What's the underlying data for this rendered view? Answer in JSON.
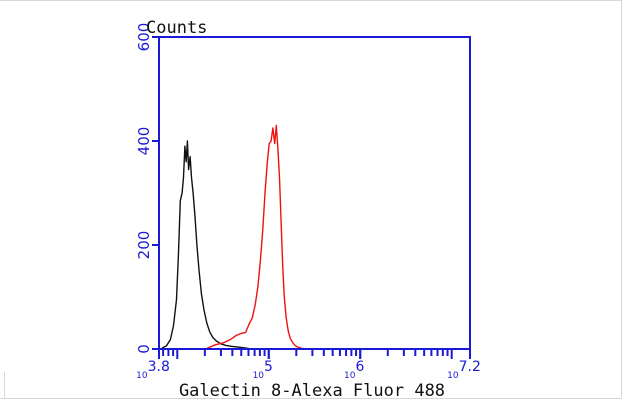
{
  "chart_data": {
    "type": "line",
    "title": "",
    "xlabel": "Galectin 8-Alexa Fluor 488",
    "ylabel": "Counts",
    "x_scale": "log",
    "xlim": [
      6310,
      15850000
    ],
    "ylim": [
      0,
      600
    ],
    "x_major_ticks": [
      {
        "value": 6310,
        "base": "10",
        "exp": "3.8"
      },
      {
        "value": 100000,
        "base": "10",
        "exp": "5"
      },
      {
        "value": 1000000,
        "base": "10",
        "exp": "6"
      },
      {
        "value": 15850000,
        "base": "10",
        "exp": "7.2"
      }
    ],
    "y_ticks": [
      0,
      200,
      400,
      600
    ],
    "colors": {
      "axis": "#1a1ad6",
      "black_series": "#111111",
      "red_series": "#ee1111",
      "frame": "#d7d7d7"
    },
    "series": [
      {
        "color": "#111111",
        "x": [
          6800,
          7600,
          8400,
          9100,
          9800,
          10300,
          10800,
          11300,
          11700,
          12100,
          12500,
          12900,
          13300,
          13800,
          14300,
          14900,
          15600,
          16400,
          17300,
          18400,
          19600,
          21000,
          22600,
          24500,
          27000,
          30000,
          34000,
          40000,
          50000,
          60000
        ],
        "y": [
          2,
          6,
          18,
          45,
          95,
          185,
          285,
          300,
          330,
          390,
          360,
          400,
          345,
          370,
          330,
          300,
          255,
          200,
          150,
          105,
          75,
          50,
          33,
          22,
          15,
          10,
          7,
          5,
          3,
          1
        ]
      },
      {
        "color": "#ee1111",
        "x": [
          21000,
          26000,
          32000,
          38000,
          44000,
          50000,
          56000,
          61000,
          66000,
          71000,
          76000,
          81000,
          86000,
          91000,
          96000,
          101000,
          106000,
          111000,
          116000,
          121000,
          126000,
          131000,
          136000,
          142000,
          148000,
          155000,
          163000,
          172000,
          183000,
          196000,
          212000,
          232000,
          260000
        ],
        "y": [
          1,
          8,
          12,
          18,
          26,
          30,
          32,
          48,
          60,
          85,
          120,
          170,
          230,
          300,
          355,
          395,
          400,
          425,
          395,
          430,
          385,
          330,
          250,
          160,
          100,
          60,
          35,
          20,
          12,
          6,
          3,
          1,
          0
        ]
      }
    ]
  }
}
